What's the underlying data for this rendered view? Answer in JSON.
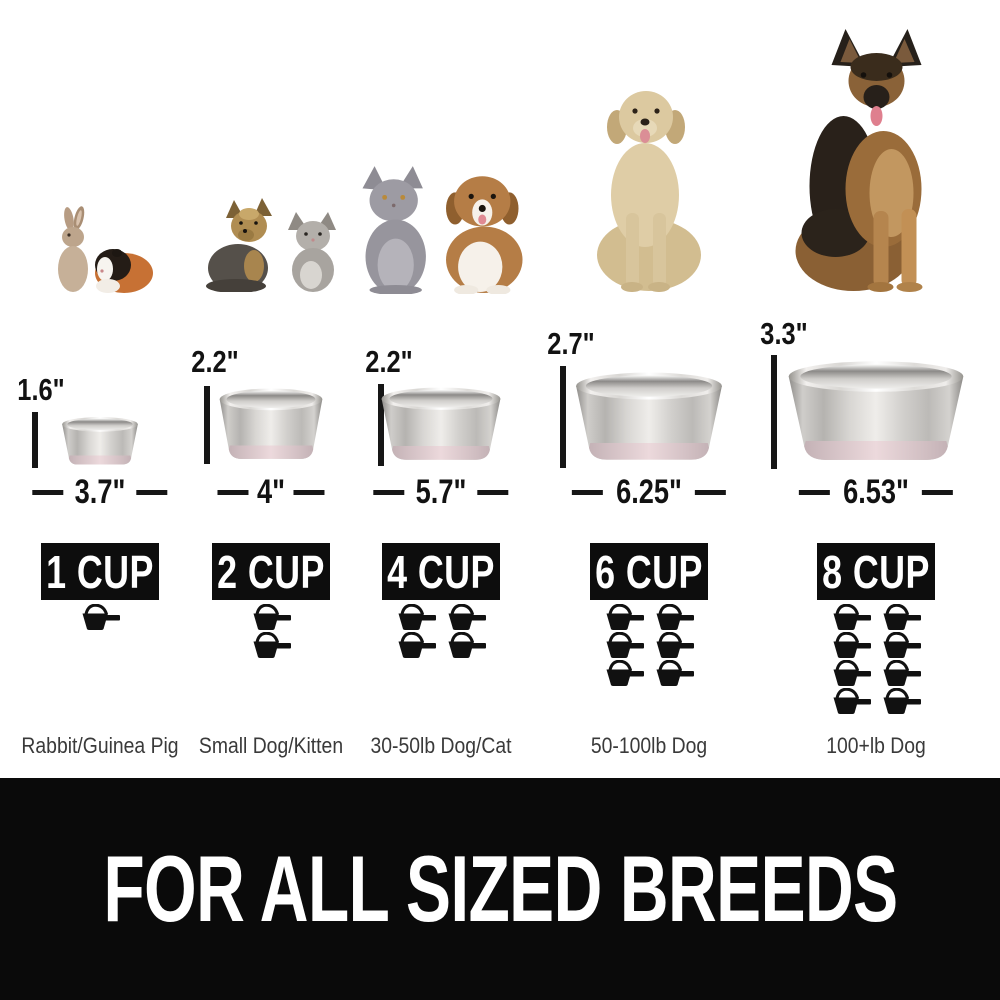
{
  "columns": [
    {
      "photo": "rabbit-and-guinea-pig",
      "animal_label": "Rabbit/Guinea Pig",
      "bowl_height": "1.6\"",
      "bowl_width": "3.7\"",
      "cup_label": "1 CUP",
      "cup_count": 1
    },
    {
      "photo": "small-dog-and-kitten",
      "animal_label": "Small Dog/Kitten",
      "bowl_height": "2.2\"",
      "bowl_width": "4\"",
      "cup_label": "2 CUP",
      "cup_count": 2
    },
    {
      "photo": "gray-cat-and-puppy",
      "animal_label": "30-50lb Dog/Cat",
      "bowl_height": "2.2\"",
      "bowl_width": "5.7\"",
      "cup_label": "4 CUP",
      "cup_count": 4
    },
    {
      "photo": "golden-retriever",
      "animal_label": "50-100lb Dog",
      "bowl_height": "2.7\"",
      "bowl_width": "6.25\"",
      "cup_label": "6 CUP",
      "cup_count": 6
    },
    {
      "photo": "german-shepherd",
      "animal_label": "100+lb Dog",
      "bowl_height": "3.3\"",
      "bowl_width": "6.53\"",
      "cup_label": "8 CUP",
      "cup_count": 8
    }
  ],
  "banner": {
    "text": "FOR ALL SIZED BREEDS"
  },
  "icons": {
    "scoop": "measuring-scoop-icon"
  },
  "colors": {
    "badge_bg": "#0d0d0d",
    "banner_bg": "#0a0a0a",
    "measure_text": "#121212",
    "label_text": "#3a3a3a",
    "bowl_base_pink": "#e3ced2",
    "steel_light": "#efedea",
    "steel_dark": "#8f8d8a"
  }
}
